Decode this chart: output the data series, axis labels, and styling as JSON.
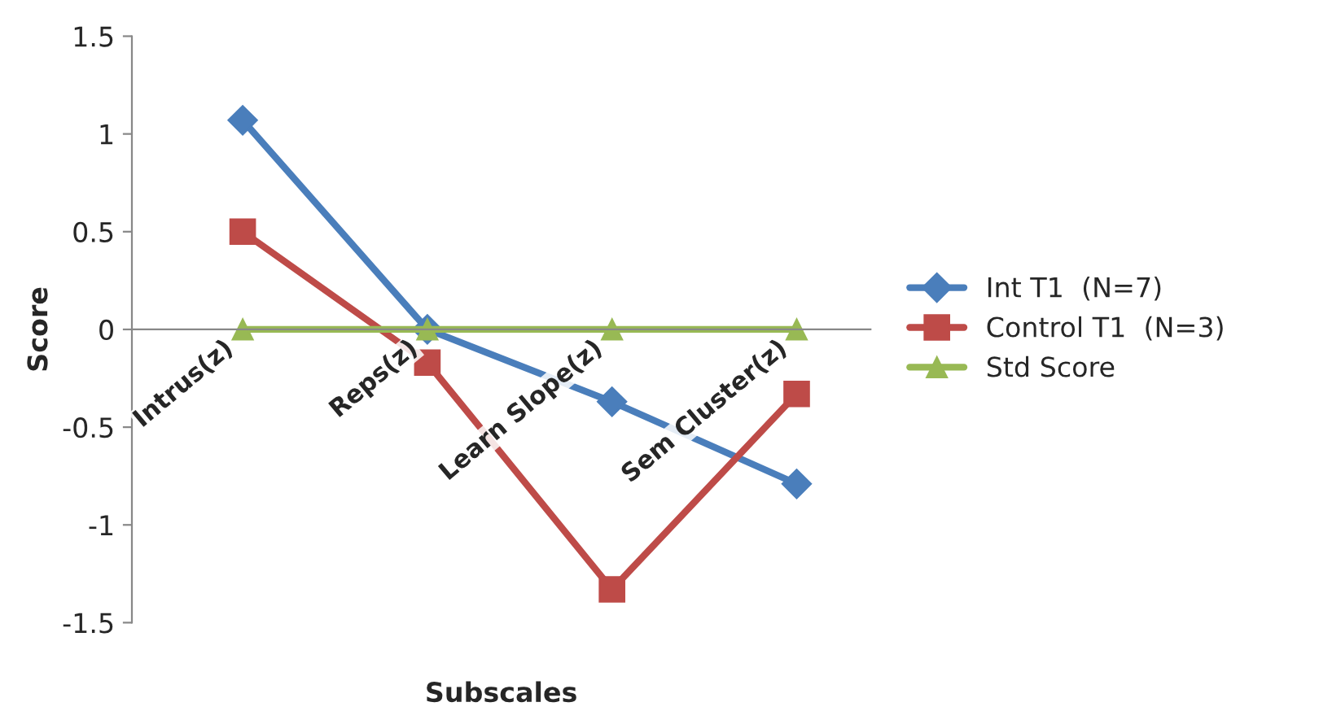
{
  "chart_data": {
    "type": "line",
    "xlabel": "Subscales",
    "ylabel": "Score",
    "categories": [
      "Intrus(z)",
      "Reps(z)",
      "Learn Slope(z)",
      "Sem Cluster(z)"
    ],
    "series": [
      {
        "name": "Int T1  (N=7)",
        "color": "#4a7ebb",
        "marker": "diamond",
        "values": [
          1.07,
          0,
          -0.37,
          -0.79
        ]
      },
      {
        "name": "Control T1  (N=3)",
        "color": "#be4b48",
        "marker": "square",
        "values": [
          0.5,
          -0.17,
          -1.33,
          -0.33
        ]
      },
      {
        "name": "Std Score",
        "color": "#98b954",
        "marker": "triangle",
        "values": [
          0,
          0,
          0,
          0
        ]
      }
    ],
    "ylim": [
      -1.5,
      1.5
    ],
    "yticks": [
      -1.5,
      -1,
      -0.5,
      0,
      0.5,
      1,
      1.5
    ],
    "grid": false,
    "legend": "right"
  }
}
